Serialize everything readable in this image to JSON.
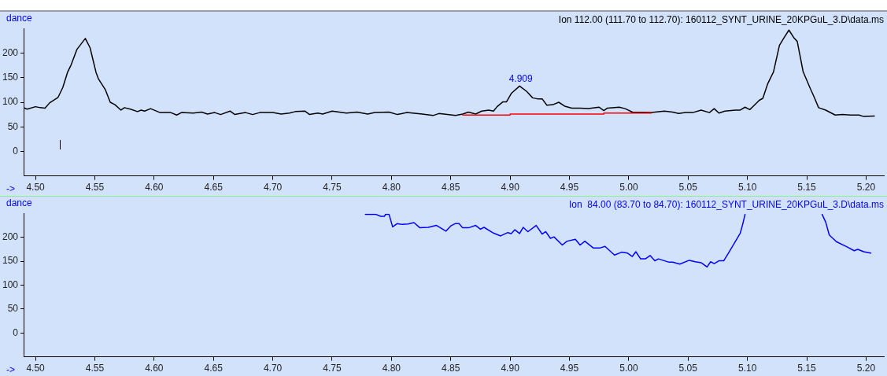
{
  "chart_data": [
    {
      "type": "line",
      "title": "Ion 112.00 (111.70 to 112.70): 160112_SYNT_URINE_20KPGuL_3.D\\data.ms",
      "xlabel": "->",
      "ylabel": "dance",
      "xlim": [
        4.49,
        5.215
      ],
      "xticks": [
        {
          "value": 4.5,
          "label": "4.50"
        },
        {
          "value": 4.55,
          "label": "4.55"
        },
        {
          "value": 4.6,
          "label": "4.60"
        },
        {
          "value": 4.65,
          "label": "4.65"
        },
        {
          "value": 4.7,
          "label": "4.70"
        },
        {
          "value": 4.75,
          "label": "4.75"
        },
        {
          "value": 4.8,
          "label": "4.80"
        },
        {
          "value": 4.85,
          "label": "4.85"
        },
        {
          "value": 4.9,
          "label": "4.90"
        },
        {
          "value": 4.95,
          "label": "4.95"
        },
        {
          "value": 5.0,
          "label": "5.00"
        },
        {
          "value": 5.05,
          "label": "5.05"
        },
        {
          "value": 5.1,
          "label": "5.10"
        },
        {
          "value": 5.15,
          "label": "5.15"
        },
        {
          "value": 5.2,
          "label": "5.20"
        }
      ],
      "ylim": [
        -50,
        250
      ],
      "yticks": [
        0,
        50,
        100,
        150,
        200
      ],
      "grid": false,
      "legend": false,
      "marker": "none",
      "line_style": "solid",
      "annotations": [
        {
          "text": "4.909",
          "x": 4.909,
          "y": 133
        }
      ],
      "series": [
        {
          "color": "#000000",
          "x": [
            4.49,
            4.493,
            4.5,
            4.504,
            4.508,
            4.512,
            4.519,
            4.523,
            4.527,
            4.53,
            4.535,
            4.542,
            4.546,
            4.551,
            4.553,
            4.559,
            4.563,
            4.567,
            4.572,
            4.575,
            4.58,
            4.586,
            4.589,
            4.592,
            4.597,
            4.605,
            4.614,
            4.619,
            4.623,
            4.633,
            4.64,
            4.645,
            4.651,
            4.656,
            4.664,
            4.668,
            4.677,
            4.683,
            4.689,
            4.7,
            4.707,
            4.714,
            4.719,
            4.727,
            4.731,
            4.738,
            4.742,
            4.75,
            4.762,
            4.771,
            4.78,
            4.786,
            4.798,
            4.805,
            4.813,
            4.826,
            4.835,
            4.84,
            4.847,
            4.854,
            4.86,
            4.865,
            4.871,
            4.876,
            4.882,
            4.886,
            4.889,
            4.894,
            4.897,
            4.901,
            4.908,
            4.914,
            4.919,
            4.923,
            4.927,
            4.931,
            4.936,
            4.941,
            4.946,
            4.952,
            4.959,
            4.966,
            4.975,
            4.979,
            4.982,
            4.992,
            4.997,
            5.003,
            5.019,
            5.03,
            5.037,
            5.042,
            5.048,
            5.054,
            5.061,
            5.068,
            5.072,
            5.076,
            5.081,
            5.09,
            5.094,
            5.098,
            5.102,
            5.105,
            5.11,
            5.113,
            5.117,
            5.122,
            5.127,
            5.131,
            5.135,
            5.139,
            5.142,
            5.147,
            5.153,
            5.156,
            5.16,
            5.166,
            5.174,
            5.18,
            5.187,
            5.194,
            5.198,
            5.207
          ],
          "values": [
            89,
            86,
            91,
            89,
            88,
            99,
            110,
            130,
            161,
            176,
            208,
            230,
            211,
            161,
            148,
            125,
            100,
            95,
            84,
            89,
            86,
            81,
            84,
            82,
            87,
            79,
            79,
            74,
            79,
            78,
            80,
            76,
            79,
            75,
            82,
            75,
            79,
            75,
            79,
            79,
            76,
            78,
            81,
            82,
            75,
            78,
            76,
            82,
            78,
            80,
            76,
            79,
            80,
            75,
            79,
            76,
            73,
            77,
            75,
            73,
            76,
            80,
            76,
            82,
            84,
            82,
            91,
            101,
            101,
            118,
            133,
            122,
            109,
            107,
            107,
            94,
            95,
            100,
            92,
            88,
            88,
            87,
            90,
            83,
            88,
            90,
            87,
            80,
            79,
            82,
            80,
            77,
            79,
            79,
            84,
            79,
            87,
            78,
            82,
            84,
            84,
            90,
            85,
            92,
            104,
            108,
            137,
            162,
            216,
            232,
            247,
            232,
            224,
            162,
            128,
            112,
            89,
            84,
            74,
            75,
            74,
            74,
            71,
            72
          ]
        },
        {
          "color": "#ff0000",
          "x": [
            4.86,
            4.9,
            4.9,
            4.979,
            4.979,
            5.019
          ],
          "values": [
            74,
            74,
            76,
            76,
            78,
            78
          ]
        }
      ]
    },
    {
      "type": "line",
      "title": "Ion  84.00 (83.70 to 84.70): 160112_SYNT_URINE_20KPGuL_3.D\\data.ms",
      "xlabel": "->",
      "ylabel": "dance",
      "xlim": [
        4.49,
        5.215
      ],
      "xticks": [
        {
          "value": 4.5,
          "label": "4.50"
        },
        {
          "value": 4.55,
          "label": "4.55"
        },
        {
          "value": 4.6,
          "label": "4.60"
        },
        {
          "value": 4.65,
          "label": "4.65"
        },
        {
          "value": 4.7,
          "label": "4.70"
        },
        {
          "value": 4.75,
          "label": "4.75"
        },
        {
          "value": 4.8,
          "label": "4.80"
        },
        {
          "value": 4.85,
          "label": "4.85"
        },
        {
          "value": 4.9,
          "label": "4.90"
        },
        {
          "value": 4.95,
          "label": "4.95"
        },
        {
          "value": 5.0,
          "label": "5.00"
        },
        {
          "value": 5.05,
          "label": "5.05"
        },
        {
          "value": 5.1,
          "label": "5.10"
        },
        {
          "value": 5.15,
          "label": "5.15"
        },
        {
          "value": 5.2,
          "label": "5.20"
        }
      ],
      "ylim": [
        -50,
        250
      ],
      "yticks": [
        0,
        50,
        100,
        150,
        200
      ],
      "grid": false,
      "legend": false,
      "marker": "none",
      "line_style": "solid",
      "series": [
        {
          "color": "#0000ff",
          "x": [
            4.778,
            4.787,
            4.791,
            4.794,
            4.795,
            4.798,
            4.801,
            4.805,
            4.809,
            4.814,
            4.819,
            4.824,
            4.831,
            4.838,
            4.846,
            4.85,
            4.854,
            4.857,
            4.86,
            4.865,
            4.871,
            4.875,
            4.878,
            4.886,
            4.892,
            4.898,
            4.901,
            4.904,
            4.908,
            4.911,
            4.915,
            4.922,
            4.927,
            4.93,
            4.934,
            4.937,
            4.944,
            4.948,
            4.955,
            4.959,
            4.963,
            4.97,
            4.976,
            4.98,
            4.988,
            4.994,
            4.999,
            5.003,
            5.006,
            5.01,
            5.014,
            5.018,
            5.022,
            5.025,
            5.034,
            5.037,
            5.043,
            5.051,
            5.056,
            5.061,
            5.066,
            5.069,
            5.072,
            5.076,
            5.08,
            5.084,
            5.089,
            5.094,
            5.096,
            5.098,
            5.13,
            5.163,
            5.166,
            5.169,
            5.175,
            5.184,
            5.19,
            5.193,
            5.198,
            5.204
          ],
          "values": [
            248,
            248,
            244,
            244,
            248,
            248,
            222,
            229,
            227,
            228,
            231,
            220,
            221,
            225,
            213,
            224,
            229,
            229,
            220,
            220,
            225,
            217,
            221,
            209,
            203,
            210,
            208,
            216,
            208,
            221,
            212,
            225,
            207,
            212,
            198,
            201,
            184,
            192,
            196,
            184,
            192,
            178,
            178,
            181,
            163,
            169,
            167,
            160,
            170,
            155,
            155,
            162,
            151,
            155,
            148,
            148,
            144,
            152,
            149,
            147,
            138,
            149,
            145,
            151,
            151,
            167,
            188,
            209,
            227,
            248,
            null,
            248,
            232,
            205,
            191,
            180,
            172,
            175,
            170,
            167
          ]
        }
      ]
    }
  ]
}
